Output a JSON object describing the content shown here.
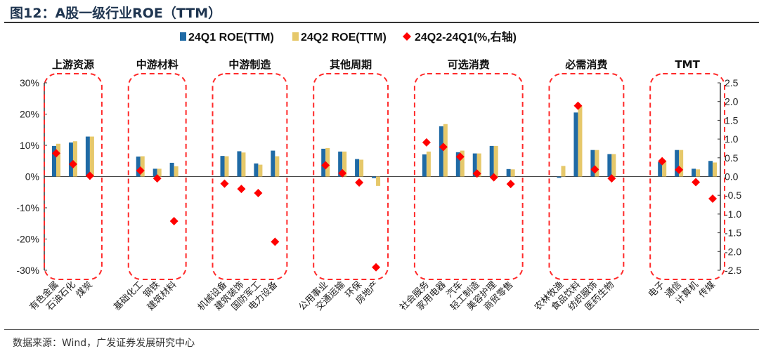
{
  "title": "图12：A股一级行业ROE（TTM）",
  "source": "数据来源：Wind，广发证券发展研究中心",
  "chart_data": {
    "type": "bar",
    "left_axis": {
      "min": -30,
      "max": 30,
      "step": 10,
      "tick_labels": [
        "30%",
        "20%",
        "10%",
        "0%",
        "-10%",
        "-20%",
        "-30%"
      ]
    },
    "right_axis": {
      "min": -2.5,
      "max": 2.5,
      "step": 0.5,
      "tick_labels": [
        "2.5",
        "2.0",
        "1.5",
        "1.0",
        "0.5",
        "0.0",
        "-0.5",
        "-1.0",
        "-1.5",
        "-2.0",
        "-2.5"
      ]
    },
    "legend": {
      "placement": "top",
      "entries": [
        "24Q1 ROE(TTM)",
        "24Q2 ROE(TTM)",
        "24Q2-24Q1(%,右轴)"
      ]
    },
    "colors": {
      "q1": "#1f6aa5",
      "q2": "#e6c86a",
      "diff": "#ff0000",
      "group_box": "#ff2a2a"
    },
    "groups": [
      {
        "name": "上游资源",
        "categories": [
          "有色金属",
          "石油石化",
          "煤炭"
        ],
        "q1": [
          9.8,
          10.9,
          12.8
        ],
        "q2": [
          10.5,
          11.3,
          12.8
        ],
        "diff": [
          0.62,
          0.33,
          0.02
        ]
      },
      {
        "name": "中游材料",
        "categories": [
          "基础化工",
          "钢铁",
          "建筑材料"
        ],
        "q1": [
          6.4,
          2.5,
          4.4
        ],
        "q2": [
          6.5,
          2.5,
          3.3
        ],
        "diff": [
          0.16,
          -0.05,
          -1.19
        ]
      },
      {
        "name": "中游制造",
        "categories": [
          "机械设备",
          "建筑装饰",
          "国防军工",
          "电力设备"
        ],
        "q1": [
          6.6,
          8.1,
          4.2,
          8.3
        ],
        "q2": [
          6.5,
          7.7,
          3.8,
          6.5
        ],
        "diff": [
          -0.19,
          -0.33,
          -0.44,
          -1.74
        ]
      },
      {
        "name": "其他周期",
        "categories": [
          "公用事业",
          "交通运输",
          "环保",
          "房地产"
        ],
        "q1": [
          8.9,
          8.0,
          5.6,
          -0.5
        ],
        "q2": [
          9.1,
          8.0,
          5.4,
          -3.0
        ],
        "diff": [
          0.3,
          0.09,
          -0.16,
          -2.42
        ]
      },
      {
        "name": "可选消费",
        "categories": [
          "社会服务",
          "家用电器",
          "汽车",
          "轻工制造",
          "美容护理",
          "商贸零售"
        ],
        "q1": [
          7.1,
          16.1,
          7.8,
          7.4,
          9.8,
          2.4
        ],
        "q2": [
          8.0,
          16.8,
          8.3,
          7.4,
          9.8,
          2.3
        ],
        "diff": [
          0.91,
          0.79,
          0.53,
          0.08,
          -0.02,
          -0.2
        ]
      },
      {
        "name": "必需消费",
        "categories": [
          "农林牧渔",
          "食品饮料",
          "纺织服饰",
          "医药生物"
        ],
        "q1": [
          -0.4,
          20.5,
          8.5,
          7.2
        ],
        "q2": [
          3.4,
          22.6,
          8.5,
          7.2
        ],
        "diff": [
          null,
          1.89,
          0.19,
          -0.05
        ]
      },
      {
        "name": "TMT",
        "categories": [
          "电子",
          "通信",
          "计算机",
          "传媒"
        ],
        "q1": [
          4.6,
          8.5,
          2.5,
          5.0
        ],
        "q2": [
          5.1,
          8.5,
          2.3,
          4.5
        ],
        "diff": [
          0.41,
          0.18,
          -0.15,
          -0.59
        ]
      }
    ]
  }
}
